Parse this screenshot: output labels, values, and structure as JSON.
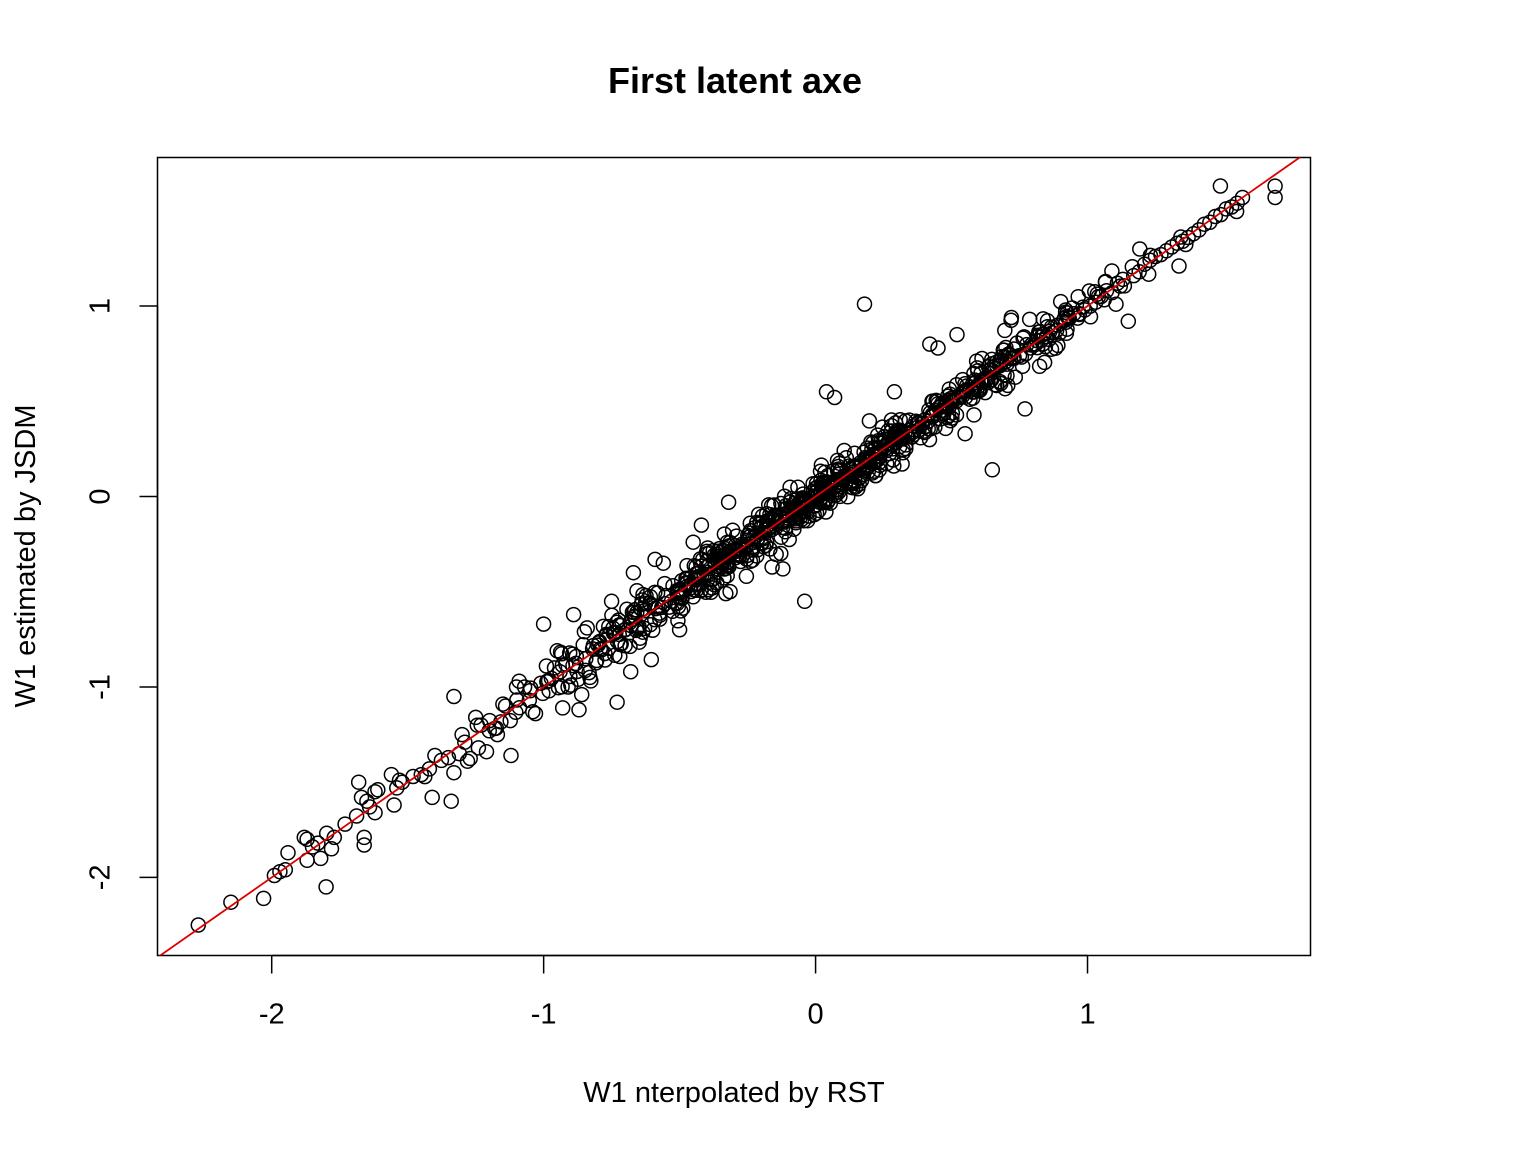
{
  "chart_data": {
    "type": "scatter",
    "title": "First latent axe",
    "xlabel": "W1 nterpolated by RST",
    "ylabel": "W1 estimated by JSDM",
    "xlim": [
      -2.42,
      1.82
    ],
    "ylim": [
      -2.41,
      1.78
    ],
    "xticks": [
      -2,
      -1,
      0,
      1
    ],
    "yticks": [
      -2,
      -1,
      0,
      1
    ],
    "xtick_labels": [
      "-2",
      "-1",
      "0",
      "1"
    ],
    "ytick_labels": [
      "-2",
      "-1",
      "0",
      "1"
    ],
    "grid": false,
    "reference_line": {
      "type": "identity",
      "intercept": 0,
      "slope": 1,
      "color": "#dd0000"
    },
    "marker": "open-circle",
    "point_color": "#000000",
    "n_points": 950,
    "points": [
      [
        -2.27,
        -2.25
      ],
      [
        -2.15,
        -2.13
      ],
      [
        -2.03,
        -2.11
      ],
      [
        -1.99,
        -1.99
      ],
      [
        -1.97,
        -1.97
      ],
      [
        -1.95,
        -1.96
      ],
      [
        -1.94,
        -1.87
      ],
      [
        -1.88,
        -1.79
      ],
      [
        -1.87,
        -1.8
      ],
      [
        -1.87,
        -1.91
      ],
      [
        -1.85,
        -1.84
      ],
      [
        -1.83,
        -1.82
      ],
      [
        -1.82,
        -1.9
      ],
      [
        -1.8,
        -2.05
      ],
      [
        -1.78,
        -1.85
      ],
      [
        -1.77,
        -1.79
      ],
      [
        -1.73,
        -1.72
      ],
      [
        -1.68,
        -1.5
      ],
      [
        -1.67,
        -1.58
      ],
      [
        -1.66,
        -1.79
      ],
      [
        -1.66,
        -1.83
      ],
      [
        -1.65,
        -1.6
      ],
      [
        -1.64,
        -1.63
      ],
      [
        -1.62,
        -1.55
      ],
      [
        -1.62,
        -1.66
      ],
      [
        -1.61,
        -1.54
      ],
      [
        -1.56,
        -1.46
      ],
      [
        -1.55,
        -1.62
      ],
      [
        -1.54,
        -1.53
      ],
      [
        -1.53,
        -1.49
      ],
      [
        -1.52,
        -1.5
      ],
      [
        -1.48,
        -1.47
      ],
      [
        -1.45,
        -1.46
      ],
      [
        -1.42,
        -1.43
      ],
      [
        -1.41,
        -1.58
      ],
      [
        -1.4,
        -1.36
      ],
      [
        -1.34,
        -1.6
      ],
      [
        -1.33,
        -1.05
      ],
      [
        -1.33,
        -1.45
      ],
      [
        -1.31,
        -1.35
      ],
      [
        -1.3,
        -1.25
      ],
      [
        -1.29,
        -1.29
      ],
      [
        -1.28,
        -1.39
      ],
      [
        -1.25,
        -1.16
      ],
      [
        -1.24,
        -1.32
      ],
      [
        -1.23,
        -1.2
      ],
      [
        -1.21,
        -1.34
      ],
      [
        -1.2,
        -1.23
      ],
      [
        -1.17,
        -1.25
      ],
      [
        -1.15,
        -1.09
      ],
      [
        -1.14,
        -1.1
      ],
      [
        -1.12,
        -1.36
      ],
      [
        -1.1,
        -1.0
      ],
      [
        -1.09,
        -0.97
      ],
      [
        -1.07,
        -1.0
      ],
      [
        -1.05,
        -1.02
      ],
      [
        -1.04,
        -1.13
      ],
      [
        -1.03,
        -1.14
      ],
      [
        -1.01,
        -0.98
      ],
      [
        -1.0,
        -0.67
      ],
      [
        -0.99,
        -0.89
      ],
      [
        -0.98,
        -1.02
      ],
      [
        -0.96,
        -0.9
      ],
      [
        -0.95,
        -0.81
      ],
      [
        -0.94,
        -0.92
      ],
      [
        -0.93,
        -1.11
      ],
      [
        -0.91,
        -1.0
      ],
      [
        -0.9,
        -0.99
      ],
      [
        -0.89,
        -0.62
      ],
      [
        -0.88,
        -0.84
      ],
      [
        -0.87,
        -1.12
      ],
      [
        -0.86,
        -1.04
      ],
      [
        -0.85,
        -0.71
      ],
      [
        -0.84,
        -0.69
      ],
      [
        -0.83,
        -0.95
      ],
      [
        -0.82,
        -0.8
      ],
      [
        -0.8,
        -0.78
      ],
      [
        -0.77,
        -0.73
      ],
      [
        -0.75,
        -0.55
      ],
      [
        -0.73,
        -1.08
      ],
      [
        -0.72,
        -0.84
      ],
      [
        -0.7,
        -0.7
      ],
      [
        -0.68,
        -0.92
      ],
      [
        -0.67,
        -0.4
      ],
      [
        -0.65,
        -0.68
      ],
      [
        -0.63,
        -0.6
      ],
      [
        -0.61,
        -0.56
      ],
      [
        -0.59,
        -0.33
      ],
      [
        -0.58,
        -0.58
      ],
      [
        -0.56,
        -0.35
      ],
      [
        -0.55,
        -0.52
      ],
      [
        -0.53,
        -0.55
      ],
      [
        -0.51,
        -0.51
      ],
      [
        -0.5,
        -0.7
      ],
      [
        -0.48,
        -0.49
      ],
      [
        -0.47,
        -0.47
      ],
      [
        -0.45,
        -0.24
      ],
      [
        -0.43,
        -0.42
      ],
      [
        -0.42,
        -0.15
      ],
      [
        -0.4,
        -0.3
      ],
      [
        -0.39,
        -0.45
      ],
      [
        -0.37,
        -0.35
      ],
      [
        -0.35,
        -0.33
      ],
      [
        -0.33,
        -0.51
      ],
      [
        -0.32,
        -0.03
      ],
      [
        -0.3,
        -0.28
      ],
      [
        -0.28,
        -0.27
      ],
      [
        -0.27,
        -0.25
      ],
      [
        -0.25,
        -0.23
      ],
      [
        -0.24,
        -0.14
      ],
      [
        -0.23,
        -0.24
      ],
      [
        -0.22,
        -0.21
      ],
      [
        -0.2,
        -0.19
      ],
      [
        -0.19,
        -0.19
      ],
      [
        -0.18,
        -0.13
      ],
      [
        -0.17,
        -0.16
      ],
      [
        -0.16,
        -0.37
      ],
      [
        -0.15,
        -0.12
      ],
      [
        -0.14,
        -0.13
      ],
      [
        -0.13,
        -0.1
      ],
      [
        -0.12,
        -0.38
      ],
      [
        -0.11,
        -0.09
      ],
      [
        -0.1,
        -0.1
      ],
      [
        -0.09,
        -0.07
      ],
      [
        -0.08,
        -0.08
      ],
      [
        -0.07,
        -0.06
      ],
      [
        -0.06,
        -0.03
      ],
      [
        -0.05,
        -0.04
      ],
      [
        -0.04,
        -0.55
      ],
      [
        -0.03,
        -0.02
      ],
      [
        -0.02,
        -0.01
      ],
      [
        -0.01,
        0.0
      ],
      [
        0.0,
        0.02
      ],
      [
        0.01,
        0.01
      ],
      [
        0.02,
        0.03
      ],
      [
        0.03,
        0.04
      ],
      [
        0.04,
        0.55
      ],
      [
        0.05,
        0.03
      ],
      [
        0.06,
        0.07
      ],
      [
        0.07,
        0.52
      ],
      [
        0.08,
        0.06
      ],
      [
        0.09,
        0.09
      ],
      [
        0.1,
        0.1
      ],
      [
        0.11,
        0.11
      ],
      [
        0.12,
        0.12
      ],
      [
        0.13,
        0.14
      ],
      [
        0.14,
        0.13
      ],
      [
        0.15,
        0.16
      ],
      [
        0.16,
        0.15
      ],
      [
        0.17,
        0.17
      ],
      [
        0.18,
        1.01
      ],
      [
        0.19,
        0.19
      ],
      [
        0.2,
        0.2
      ],
      [
        0.21,
        0.22
      ],
      [
        0.22,
        0.21
      ],
      [
        0.23,
        0.23
      ],
      [
        0.25,
        0.26
      ],
      [
        0.26,
        0.24
      ],
      [
        0.27,
        0.28
      ],
      [
        0.28,
        0.27
      ],
      [
        0.29,
        0.55
      ],
      [
        0.3,
        0.3
      ],
      [
        0.32,
        0.31
      ],
      [
        0.33,
        0.34
      ],
      [
        0.35,
        0.33
      ],
      [
        0.36,
        0.37
      ],
      [
        0.38,
        0.35
      ],
      [
        0.4,
        0.4
      ],
      [
        0.42,
        0.8
      ],
      [
        0.43,
        0.42
      ],
      [
        0.45,
        0.78
      ],
      [
        0.46,
        0.45
      ],
      [
        0.48,
        0.48
      ],
      [
        0.5,
        0.5
      ],
      [
        0.52,
        0.85
      ],
      [
        0.53,
        0.52
      ],
      [
        0.55,
        0.33
      ],
      [
        0.57,
        0.56
      ],
      [
        0.59,
        0.6
      ],
      [
        0.61,
        0.6
      ],
      [
        0.63,
        0.62
      ],
      [
        0.65,
        0.14
      ],
      [
        0.66,
        0.67
      ],
      [
        0.68,
        0.69
      ],
      [
        0.7,
        0.71
      ],
      [
        0.72,
        0.94
      ],
      [
        0.73,
        0.73
      ],
      [
        0.75,
        0.74
      ],
      [
        0.77,
        0.46
      ],
      [
        0.79,
        0.78
      ],
      [
        0.81,
        0.8
      ],
      [
        0.83,
        0.82
      ],
      [
        0.85,
        0.84
      ],
      [
        0.87,
        0.86
      ],
      [
        0.89,
        0.9
      ],
      [
        0.91,
        0.92
      ],
      [
        0.93,
        0.94
      ],
      [
        0.95,
        0.96
      ],
      [
        0.97,
        0.96
      ],
      [
        0.99,
        0.98
      ],
      [
        1.01,
        1.0
      ],
      [
        1.03,
        1.02
      ],
      [
        1.05,
        1.05
      ],
      [
        1.07,
        1.08
      ],
      [
        1.09,
        1.07
      ],
      [
        1.11,
        1.12
      ],
      [
        1.13,
        1.14
      ],
      [
        1.15,
        0.92
      ],
      [
        1.17,
        1.16
      ],
      [
        1.19,
        1.18
      ],
      [
        1.21,
        1.22
      ],
      [
        1.23,
        1.24
      ],
      [
        1.25,
        1.26
      ],
      [
        1.27,
        1.27
      ],
      [
        1.29,
        1.29
      ],
      [
        1.31,
        1.31
      ],
      [
        1.33,
        1.33
      ],
      [
        1.35,
        1.34
      ],
      [
        1.37,
        1.36
      ],
      [
        1.39,
        1.38
      ],
      [
        1.41,
        1.4
      ],
      [
        1.43,
        1.43
      ],
      [
        1.45,
        1.44
      ],
      [
        1.47,
        1.47
      ],
      [
        1.49,
        1.48
      ],
      [
        1.51,
        1.51
      ],
      [
        1.53,
        1.52
      ],
      [
        1.55,
        1.54
      ],
      [
        1.57,
        1.57
      ],
      [
        1.69,
        1.63
      ],
      [
        1.69,
        1.57
      ]
    ]
  }
}
